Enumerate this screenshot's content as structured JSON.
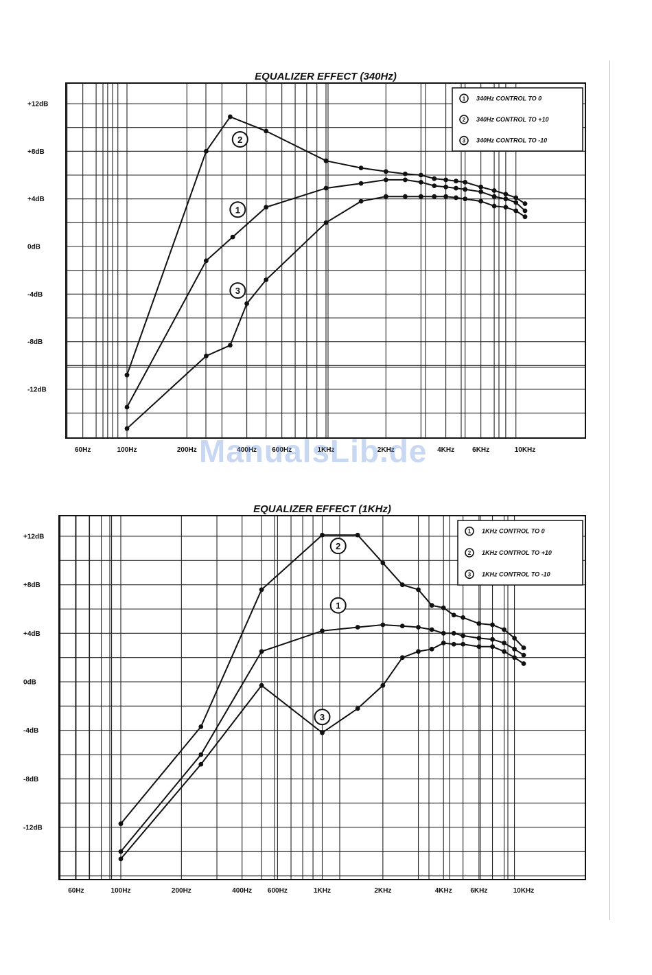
{
  "watermark": "ManualsLib.de",
  "chart_data": [
    {
      "type": "line",
      "title": "EQUALIZER EFFECT (340Hz)",
      "xscale": "log",
      "xticks": [
        {
          "value": 60,
          "label": "60Hz"
        },
        {
          "value": 100,
          "label": "100Hz"
        },
        {
          "value": 200,
          "label": "200Hz"
        },
        {
          "value": 400,
          "label": "400Hz"
        },
        {
          "value": 600,
          "label": "600Hz"
        },
        {
          "value": 1000,
          "label": "1KHz"
        },
        {
          "value": 2000,
          "label": "2KHz"
        },
        {
          "value": 4000,
          "label": "4KHz"
        },
        {
          "value": 6000,
          "label": "6KHz"
        },
        {
          "value": 10000,
          "label": "10KHz"
        }
      ],
      "yticks": [
        {
          "value": 12,
          "label": "+12dB"
        },
        {
          "value": 8,
          "label": "+8dB"
        },
        {
          "value": 4,
          "label": "+4dB"
        },
        {
          "value": 0,
          "label": "0dB"
        },
        {
          "value": -4,
          "label": "-4dB"
        },
        {
          "value": -8,
          "label": "-8dB"
        },
        {
          "value": -12,
          "label": "-12dB"
        }
      ],
      "ylim": [
        -16,
        13.5
      ],
      "legend_position": "top-right",
      "grid": true,
      "series": [
        {
          "name": "340Hz CONTROL TO 0",
          "marker": "1",
          "marker_at": [
            360,
            3.1
          ],
          "points": [
            [
              100,
              -13.5
            ],
            [
              250,
              -1.2
            ],
            [
              340,
              0.8
            ],
            [
              500,
              3.3
            ],
            [
              1000,
              4.9
            ],
            [
              1500,
              5.3
            ],
            [
              2000,
              5.6
            ],
            [
              2500,
              5.6
            ],
            [
              3000,
              5.4
            ],
            [
              3500,
              5.1
            ],
            [
              4000,
              5.0
            ],
            [
              4500,
              4.9
            ],
            [
              5000,
              4.8
            ],
            [
              6000,
              4.6
            ],
            [
              7000,
              4.2
            ],
            [
              8000,
              4.0
            ],
            [
              9000,
              3.7
            ],
            [
              10000,
              3.0
            ]
          ]
        },
        {
          "name": "340Hz CONTROL TO +10",
          "marker": "2",
          "marker_at": [
            370,
            9.0
          ],
          "points": [
            [
              100,
              -10.8
            ],
            [
              250,
              8.0
            ],
            [
              330,
              10.9
            ],
            [
              500,
              9.7
            ],
            [
              1000,
              7.2
            ],
            [
              1500,
              6.6
            ],
            [
              2000,
              6.3
            ],
            [
              2500,
              6.1
            ],
            [
              3000,
              6.0
            ],
            [
              3500,
              5.7
            ],
            [
              4000,
              5.6
            ],
            [
              4500,
              5.5
            ],
            [
              5000,
              5.4
            ],
            [
              6000,
              5.0
            ],
            [
              7000,
              4.7
            ],
            [
              8000,
              4.4
            ],
            [
              9000,
              4.1
            ],
            [
              10000,
              3.6
            ]
          ]
        },
        {
          "name": "340Hz CONTROL TO -10",
          "marker": "3",
          "marker_at": [
            360,
            -3.7
          ],
          "points": [
            [
              100,
              -15.3
            ],
            [
              250,
              -9.2
            ],
            [
              330,
              -8.3
            ],
            [
              400,
              -4.8
            ],
            [
              500,
              -2.8
            ],
            [
              1000,
              2.0
            ],
            [
              1500,
              3.8
            ],
            [
              2000,
              4.2
            ],
            [
              2500,
              4.2
            ],
            [
              3000,
              4.2
            ],
            [
              3500,
              4.2
            ],
            [
              4000,
              4.2
            ],
            [
              4500,
              4.1
            ],
            [
              5000,
              4.0
            ],
            [
              6000,
              3.8
            ],
            [
              7000,
              3.4
            ],
            [
              8000,
              3.3
            ],
            [
              9000,
              3.0
            ],
            [
              10000,
              2.5
            ]
          ]
        }
      ]
    },
    {
      "type": "line",
      "title": "EQUALIZER EFFECT (1KHz)",
      "xscale": "log",
      "xticks": [
        {
          "value": 60,
          "label": "60Hz"
        },
        {
          "value": 100,
          "label": "100Hz"
        },
        {
          "value": 200,
          "label": "200Hz"
        },
        {
          "value": 400,
          "label": "400Hz"
        },
        {
          "value": 600,
          "label": "600Hz"
        },
        {
          "value": 1000,
          "label": "1KHz"
        },
        {
          "value": 2000,
          "label": "2KHz"
        },
        {
          "value": 4000,
          "label": "4KHz"
        },
        {
          "value": 6000,
          "label": "6KHz"
        },
        {
          "value": 10000,
          "label": "10KHz"
        }
      ],
      "yticks": [
        {
          "value": 12,
          "label": "+12dB"
        },
        {
          "value": 8,
          "label": "+8dB"
        },
        {
          "value": 4,
          "label": "+4dB"
        },
        {
          "value": 0,
          "label": "0dB"
        },
        {
          "value": -4,
          "label": "-4dB"
        },
        {
          "value": -8,
          "label": "-8dB"
        },
        {
          "value": -12,
          "label": "-12dB"
        }
      ],
      "ylim": [
        -16.5,
        13.5
      ],
      "legend_position": "top-right",
      "grid": true,
      "series": [
        {
          "name": "1KHz CONTROL TO 0",
          "marker": "1",
          "marker_at": [
            1200,
            6.3
          ],
          "points": [
            [
              100,
              -14.0
            ],
            [
              250,
              -6.0
            ],
            [
              500,
              2.5
            ],
            [
              1000,
              4.2
            ],
            [
              1500,
              4.5
            ],
            [
              2000,
              4.7
            ],
            [
              2500,
              4.6
            ],
            [
              3000,
              4.5
            ],
            [
              3500,
              4.3
            ],
            [
              4000,
              4.0
            ],
            [
              4500,
              4.0
            ],
            [
              5000,
              3.8
            ],
            [
              6000,
              3.6
            ],
            [
              7000,
              3.5
            ],
            [
              8000,
              3.2
            ],
            [
              9000,
              2.7
            ],
            [
              10000,
              2.2
            ]
          ]
        },
        {
          "name": "1KHz CONTROL TO +10",
          "marker": "2",
          "marker_at": [
            1200,
            11.2
          ],
          "points": [
            [
              100,
              -11.7
            ],
            [
              250,
              -3.7
            ],
            [
              500,
              7.6
            ],
            [
              1000,
              12.1
            ],
            [
              1500,
              12.1
            ],
            [
              2000,
              9.8
            ],
            [
              2500,
              8.0
            ],
            [
              3000,
              7.6
            ],
            [
              3500,
              6.3
            ],
            [
              4000,
              6.1
            ],
            [
              4500,
              5.5
            ],
            [
              5000,
              5.3
            ],
            [
              6000,
              4.8
            ],
            [
              7000,
              4.7
            ],
            [
              8000,
              4.3
            ],
            [
              9000,
              3.6
            ],
            [
              10000,
              2.8
            ]
          ]
        },
        {
          "name": "1KHz CONTROL TO -10",
          "marker": "3",
          "marker_at": [
            1000,
            -2.9
          ],
          "points": [
            [
              100,
              -14.6
            ],
            [
              250,
              -6.8
            ],
            [
              500,
              -0.3
            ],
            [
              1000,
              -4.2
            ],
            [
              1500,
              -2.2
            ],
            [
              2000,
              -0.3
            ],
            [
              2500,
              2.0
            ],
            [
              3000,
              2.5
            ],
            [
              3500,
              2.7
            ],
            [
              4000,
              3.2
            ],
            [
              4500,
              3.1
            ],
            [
              5000,
              3.1
            ],
            [
              6000,
              2.9
            ],
            [
              7000,
              2.9
            ],
            [
              8000,
              2.5
            ],
            [
              9000,
              2.0
            ],
            [
              10000,
              1.5
            ]
          ]
        }
      ]
    }
  ]
}
